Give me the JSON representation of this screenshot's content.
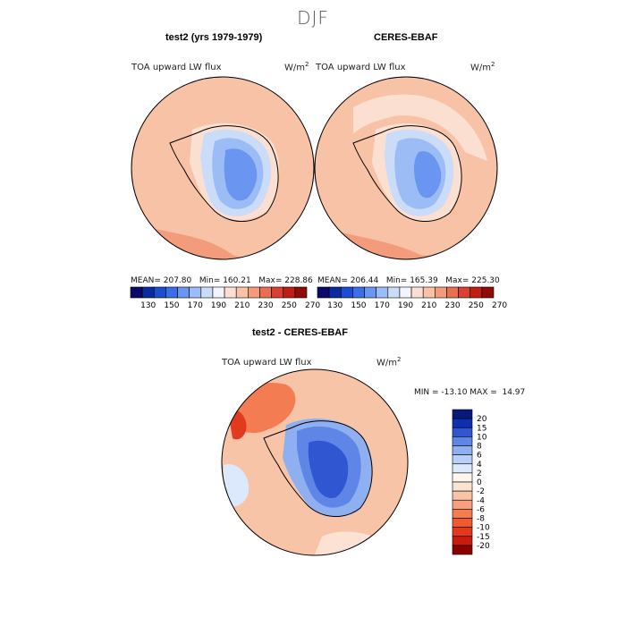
{
  "season_title": "DJF",
  "panels": [
    {
      "title": "test2 (yrs 1979-1979)",
      "variable": "TOA upward LW flux",
      "units": "W/m",
      "units_exp": "2",
      "stats": "MEAN= 207.80   Min= 160.21   Max= 228.86"
    },
    {
      "title": "CERES-EBAF",
      "variable": "TOA upward LW flux",
      "units": "W/m",
      "units_exp": "2",
      "stats": "MEAN= 206.44   Min= 165.39   Max= 225.30"
    },
    {
      "title": "test2 - CERES-EBAF",
      "variable": "TOA upward LW flux",
      "units": "W/m",
      "units_exp": "2",
      "stats": "MIN = -13.10 MAX =  14.97"
    }
  ],
  "chart_data": [
    {
      "type": "heatmap",
      "title": "test2 (yrs 1979-1979)",
      "projection": "south polar stereographic",
      "variable": "TOA upward LW flux",
      "colorbar": {
        "orientation": "horizontal",
        "ticks": [
          130,
          150,
          170,
          190,
          210,
          230,
          250,
          270
        ],
        "colors": [
          "#0a0a6b",
          "#0b2aa0",
          "#1d4ed1",
          "#3b6ee8",
          "#6a95f0",
          "#9bbcf5",
          "#cadcf8",
          "#f2f4fa",
          "#fbe0d2",
          "#f8c2a7",
          "#f39c7c",
          "#ea6e53",
          "#d94030",
          "#c01e13",
          "#8e0b06"
        ]
      },
      "summary": {
        "mean": 207.8,
        "min": 160.21,
        "max": 228.86
      }
    },
    {
      "type": "heatmap",
      "title": "CERES-EBAF",
      "projection": "south polar stereographic",
      "variable": "TOA upward LW flux",
      "colorbar": {
        "orientation": "horizontal",
        "ticks": [
          130,
          150,
          170,
          190,
          210,
          230,
          250,
          270
        ],
        "colors": [
          "#0a0a6b",
          "#0b2aa0",
          "#1d4ed1",
          "#3b6ee8",
          "#6a95f0",
          "#9bbcf5",
          "#cadcf8",
          "#f2f4fa",
          "#fbe0d2",
          "#f8c2a7",
          "#f39c7c",
          "#ea6e53",
          "#d94030",
          "#c01e13",
          "#8e0b06"
        ]
      },
      "summary": {
        "mean": 206.44,
        "min": 165.39,
        "max": 225.3
      }
    },
    {
      "type": "heatmap",
      "title": "test2 - CERES-EBAF",
      "projection": "south polar stereographic",
      "variable": "TOA upward LW flux",
      "colorbar": {
        "orientation": "vertical",
        "ticks": [
          20,
          15,
          10,
          8,
          6,
          4,
          2,
          0,
          -2,
          -4,
          -6,
          -8,
          -10,
          -15,
          -20
        ],
        "colors": [
          "#8b0000",
          "#c81c0f",
          "#e23a1c",
          "#f05a30",
          "#f47c52",
          "#f6a07c",
          "#f8c4a8",
          "#fbe2d2",
          "#fff6ee",
          "#dce8fb",
          "#b8cff7",
          "#8eb0f0",
          "#5f86e6",
          "#3056d2",
          "#0e2fae",
          "#061a7a"
        ]
      },
      "summary": {
        "min": -13.1,
        "max": 14.97
      }
    }
  ]
}
